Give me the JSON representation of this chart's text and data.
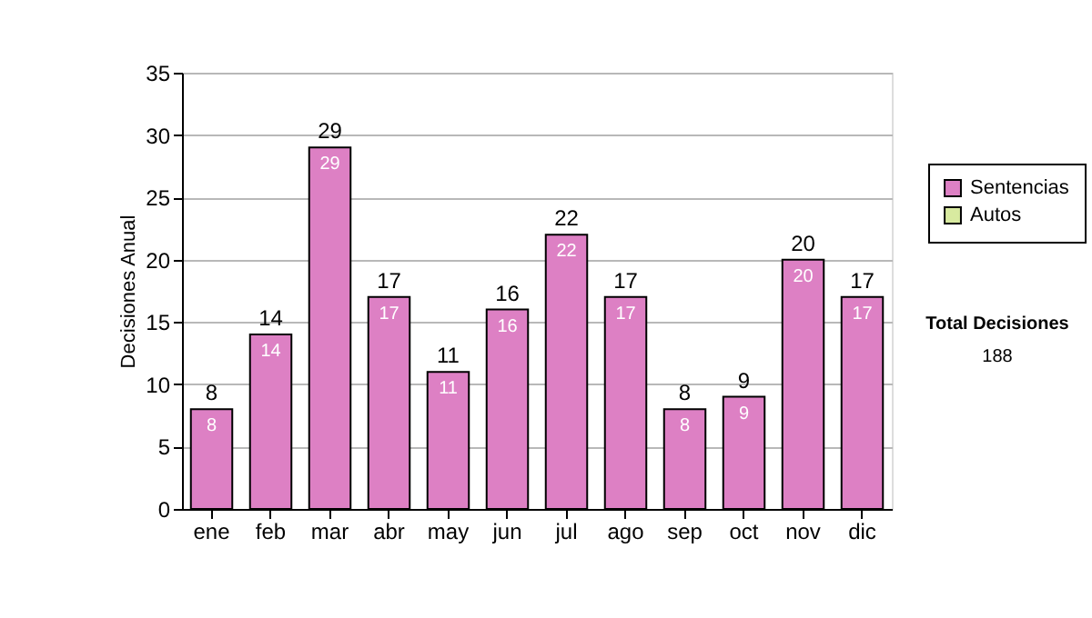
{
  "chart_data": {
    "type": "bar",
    "ylabel": "Decisiones Anual",
    "categories": [
      "ene",
      "feb",
      "mar",
      "abr",
      "may",
      "jun",
      "jul",
      "ago",
      "sep",
      "oct",
      "nov",
      "dic"
    ],
    "series": [
      {
        "name": "Sentencias",
        "color": "#dd80c4",
        "values": [
          8,
          14,
          29,
          17,
          11,
          16,
          22,
          17,
          8,
          9,
          20,
          17
        ]
      },
      {
        "name": "Autos",
        "color": "#d8eaa0",
        "values": [
          null,
          null,
          null,
          null,
          null,
          null,
          null,
          null,
          null,
          null,
          null,
          null
        ]
      }
    ],
    "stacked": true,
    "data_labels": true,
    "totals": [
      "8",
      "14",
      "29",
      "17",
      "11",
      "16",
      "22",
      "17",
      "8",
      "9",
      "20",
      "17"
    ],
    "ylim": [
      0,
      35
    ],
    "yticks": [
      0,
      5,
      10,
      15,
      20,
      25,
      30,
      35
    ],
    "grid": "y",
    "legend": "right",
    "annotations": [
      "Total Decisiones",
      "188"
    ]
  }
}
